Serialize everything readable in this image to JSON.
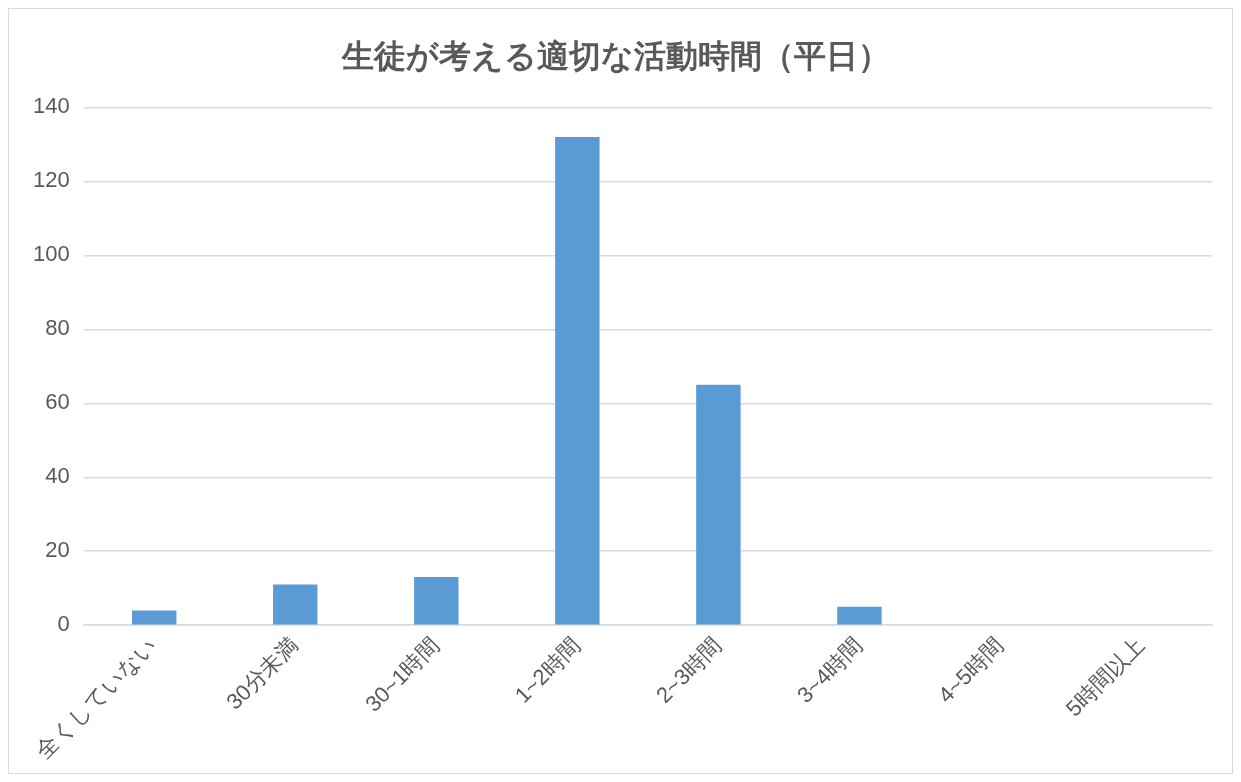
{
  "chart_data": {
    "type": "bar",
    "title": "生徒が考える適切な活動時間（平日）",
    "categories": [
      "全くしていない",
      "30分未満",
      "30~1時間",
      "1~2時間",
      "2~3時間",
      "3~4時間",
      "4~5時間",
      "5時間以上"
    ],
    "values": [
      4,
      11,
      13,
      132,
      65,
      5,
      0,
      0
    ],
    "color": "#5b9bd5",
    "ylim": [
      0,
      140
    ],
    "yticks": [
      0,
      20,
      40,
      60,
      80,
      100,
      120,
      140
    ],
    "grid": "y",
    "legend": false
  }
}
